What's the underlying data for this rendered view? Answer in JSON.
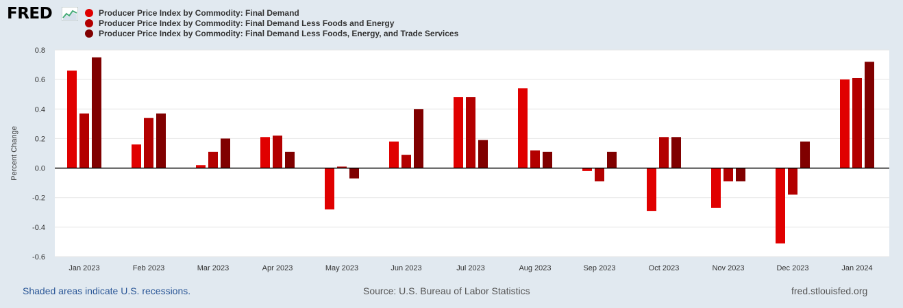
{
  "header": {
    "logo_text": "FRED"
  },
  "footer": {
    "recessions_note": "Shaded areas indicate U.S. recessions.",
    "source": "Source: U.S. Bureau of Labor Statistics",
    "site": "fred.stlouisfed.org"
  },
  "chart_data": {
    "type": "bar",
    "title": "",
    "xlabel": "",
    "ylabel": "Percent Change",
    "ylim": [
      -0.6,
      0.8
    ],
    "yticks": [
      0.8,
      0.6,
      0.4,
      0.2,
      0.0,
      -0.2,
      -0.4,
      -0.6
    ],
    "ytick_labels": [
      "0.8",
      "0.6",
      "0.4",
      "0.2",
      "0.0",
      "-0.2",
      "-0.4",
      "-0.6"
    ],
    "categories": [
      "Jan 2023",
      "Feb 2023",
      "Mar 2023",
      "Apr 2023",
      "May 2023",
      "Jun 2023",
      "Jul 2023",
      "Aug 2023",
      "Sep 2023",
      "Oct 2023",
      "Nov 2023",
      "Dec 2023",
      "Jan 2024"
    ],
    "series": [
      {
        "name": "Producer Price Index by Commodity: Final Demand",
        "color": "#e00000",
        "values": [
          0.66,
          0.16,
          0.02,
          0.21,
          -0.28,
          0.18,
          0.48,
          0.54,
          -0.02,
          -0.29,
          -0.27,
          -0.51,
          0.6
        ]
      },
      {
        "name": "Producer Price Index by Commodity: Final Demand Less Foods and Energy",
        "color": "#b30000",
        "values": [
          0.37,
          0.34,
          0.11,
          0.22,
          0.01,
          0.09,
          0.48,
          0.12,
          -0.09,
          0.21,
          -0.09,
          -0.18,
          0.61
        ]
      },
      {
        "name": "Producer Price Index by Commodity: Final Demand Less Foods, Energy, and Trade Services",
        "color": "#800000",
        "values": [
          0.75,
          0.37,
          0.2,
          0.11,
          -0.07,
          0.4,
          0.19,
          0.11,
          0.11,
          0.21,
          -0.09,
          0.18,
          0.72
        ]
      }
    ]
  }
}
